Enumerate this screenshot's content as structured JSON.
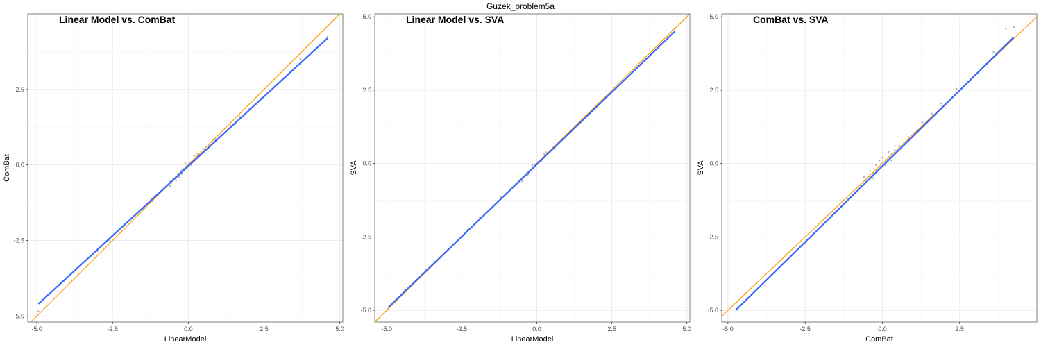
{
  "figure": {
    "suptitle": "Guzek_problem5a"
  },
  "colors": {
    "point": "#a9a9a9",
    "fit_line": "#3366ff",
    "identity_line": "#ff9900",
    "grid_major": "#ebebeb",
    "grid_minor": "#f5f5f5",
    "panel_border": "#7f7f7f"
  },
  "chart_data": [
    {
      "type": "scatter",
      "title": "Linear Model vs. ComBat",
      "xlabel": "LinearModel",
      "ylabel": "ComBat",
      "xlim": [
        -5.3,
        5.1
      ],
      "ylim": [
        -5.2,
        5.0
      ],
      "xticks": [
        -5.0,
        -2.5,
        0.0,
        2.5,
        5.0
      ],
      "xtick_labels": [
        "-5.0",
        "-2.5",
        "0.0",
        "2.5",
        "5.0"
      ],
      "yticks": [
        -5.0,
        -2.5,
        0.0,
        2.5
      ],
      "ytick_labels": [
        "-5.0",
        "-2.5",
        "0.0",
        "2.5"
      ],
      "grid": true,
      "identity_line": {
        "intercept": 0,
        "slope": 1
      },
      "fit_line": {
        "x": [
          -4.95,
          4.6
        ],
        "y": [
          -4.6,
          4.2
        ]
      },
      "points": [
        [
          -4.95,
          -4.85
        ],
        [
          -4.1,
          -3.85
        ],
        [
          -3.7,
          -3.45
        ],
        [
          -3.0,
          -2.85
        ],
        [
          -2.6,
          -2.5
        ],
        [
          -2.2,
          -2.05
        ],
        [
          -1.8,
          -1.7
        ],
        [
          -1.5,
          -1.45
        ],
        [
          -1.2,
          -1.2
        ],
        [
          -1.0,
          -1.0
        ],
        [
          -0.85,
          -0.82
        ],
        [
          -0.7,
          -0.68
        ],
        [
          -0.6,
          -0.55
        ],
        [
          -0.5,
          -0.45
        ],
        [
          -0.42,
          -0.38
        ],
        [
          -0.35,
          -0.3
        ],
        [
          -0.3,
          -0.28
        ],
        [
          -0.25,
          -0.2
        ],
        [
          -0.2,
          -0.16
        ],
        [
          -0.15,
          -0.12
        ],
        [
          -0.1,
          -0.06
        ],
        [
          -0.05,
          -0.03
        ],
        [
          0.0,
          0.02
        ],
        [
          0.05,
          0.06
        ],
        [
          0.1,
          0.1
        ],
        [
          0.15,
          0.14
        ],
        [
          0.2,
          0.18
        ],
        [
          0.25,
          0.22
        ],
        [
          0.3,
          0.26
        ],
        [
          0.38,
          0.34
        ],
        [
          0.45,
          0.4
        ],
        [
          0.55,
          0.5
        ],
        [
          0.7,
          0.63
        ],
        [
          0.9,
          0.82
        ],
        [
          1.1,
          1.0
        ],
        [
          1.4,
          1.3
        ],
        [
          1.7,
          1.6
        ],
        [
          2.0,
          1.85
        ],
        [
          2.4,
          2.2
        ],
        [
          3.7,
          3.5
        ],
        [
          4.6,
          4.25
        ],
        [
          -0.4,
          -0.5
        ],
        [
          -0.2,
          -0.3
        ],
        [
          0.1,
          0.0
        ],
        [
          0.3,
          0.38
        ],
        [
          -0.1,
          0.05
        ],
        [
          0.2,
          0.3
        ],
        [
          -0.3,
          -0.4
        ],
        [
          0.5,
          0.45
        ],
        [
          -0.6,
          -0.7
        ]
      ]
    },
    {
      "type": "scatter",
      "title": "Linear Model vs. SVA",
      "xlabel": "LinearModel",
      "ylabel": "SVA",
      "xlim": [
        -5.4,
        5.1
      ],
      "ylim": [
        -5.4,
        5.1
      ],
      "xticks": [
        -5.0,
        -2.5,
        0.0,
        2.5,
        5.0
      ],
      "xtick_labels": [
        "-5.0",
        "-2.5",
        "0.0",
        "2.5",
        "5.0"
      ],
      "yticks": [
        -5.0,
        -2.5,
        0.0,
        2.5,
        5.0
      ],
      "ytick_labels": [
        "-5.0",
        "-2.5",
        "0.0",
        "2.5",
        "5.0"
      ],
      "grid": true,
      "identity_line": {
        "intercept": 0,
        "slope": 1
      },
      "fit_line": {
        "x": [
          -4.95,
          4.6
        ],
        "y": [
          -4.9,
          4.5
        ]
      },
      "points": [
        [
          -4.95,
          -4.95
        ],
        [
          -4.4,
          -4.3
        ],
        [
          -3.7,
          -3.6
        ],
        [
          -3.4,
          -3.35
        ],
        [
          -2.8,
          -2.75
        ],
        [
          -2.3,
          -2.25
        ],
        [
          -1.9,
          -1.85
        ],
        [
          -1.5,
          -1.5
        ],
        [
          -1.2,
          -1.15
        ],
        [
          -1.0,
          -0.98
        ],
        [
          -0.85,
          -0.85
        ],
        [
          -0.7,
          -0.7
        ],
        [
          -0.55,
          -0.55
        ],
        [
          -0.45,
          -0.44
        ],
        [
          -0.35,
          -0.35
        ],
        [
          -0.28,
          -0.27
        ],
        [
          -0.2,
          -0.2
        ],
        [
          -0.12,
          -0.12
        ],
        [
          -0.05,
          -0.04
        ],
        [
          0.0,
          0.0
        ],
        [
          0.05,
          0.06
        ],
        [
          0.12,
          0.12
        ],
        [
          0.2,
          0.2
        ],
        [
          0.28,
          0.28
        ],
        [
          0.35,
          0.36
        ],
        [
          0.45,
          0.45
        ],
        [
          0.55,
          0.56
        ],
        [
          0.7,
          0.7
        ],
        [
          0.85,
          0.84
        ],
        [
          1.0,
          1.0
        ],
        [
          1.3,
          1.28
        ],
        [
          1.6,
          1.6
        ],
        [
          1.9,
          1.88
        ],
        [
          2.3,
          2.25
        ],
        [
          3.6,
          3.5
        ],
        [
          4.6,
          4.6
        ],
        [
          -0.3,
          -0.38
        ],
        [
          -0.1,
          -0.18
        ],
        [
          0.15,
          0.08
        ],
        [
          0.3,
          0.38
        ],
        [
          -0.5,
          -0.6
        ],
        [
          0.6,
          0.5
        ],
        [
          -0.15,
          -0.05
        ],
        [
          0.25,
          0.33
        ]
      ]
    },
    {
      "type": "scatter",
      "title": "ComBat vs. SVA",
      "xlabel": "ComBat",
      "ylabel": "SVA",
      "xlim": [
        -5.2,
        5.0
      ],
      "ylim": [
        -5.4,
        5.1
      ],
      "xticks": [
        -5.0,
        -2.5,
        0.0,
        2.5
      ],
      "xtick_labels": [
        "-5.0",
        "-2.5",
        "0.0",
        "2.5"
      ],
      "yticks": [
        -5.0,
        -2.5,
        0.0,
        2.5,
        5.0
      ],
      "ytick_labels": [
        "-5.0",
        "-2.5",
        "0.0",
        "2.5",
        "5.0"
      ],
      "grid": true,
      "identity_line": {
        "intercept": 0,
        "slope": 1
      },
      "fit_line": {
        "x": [
          -4.75,
          4.25
        ],
        "y": [
          -5.0,
          4.3
        ]
      },
      "points": [
        [
          -4.7,
          -4.95
        ],
        [
          -3.8,
          -4.15
        ],
        [
          -2.5,
          -2.7
        ],
        [
          -2.0,
          -2.15
        ],
        [
          -1.5,
          -1.6
        ],
        [
          -1.1,
          -1.2
        ],
        [
          -0.85,
          -0.95
        ],
        [
          -0.7,
          -0.75
        ],
        [
          -0.55,
          -0.6
        ],
        [
          -0.4,
          -0.45
        ],
        [
          -0.3,
          -0.32
        ],
        [
          -0.2,
          -0.22
        ],
        [
          -0.1,
          -0.1
        ],
        [
          0.0,
          0.0
        ],
        [
          0.1,
          0.12
        ],
        [
          0.2,
          0.22
        ],
        [
          0.3,
          0.32
        ],
        [
          0.4,
          0.45
        ],
        [
          0.55,
          0.6
        ],
        [
          0.7,
          0.72
        ],
        [
          0.85,
          0.9
        ],
        [
          1.0,
          1.05
        ],
        [
          1.3,
          1.4
        ],
        [
          1.6,
          1.7
        ],
        [
          1.9,
          2.05
        ],
        [
          2.4,
          2.55
        ],
        [
          3.6,
          3.8
        ],
        [
          4.0,
          4.6
        ],
        [
          4.25,
          4.65
        ],
        [
          -0.2,
          -0.05
        ],
        [
          0.0,
          0.2
        ],
        [
          -0.4,
          -0.25
        ],
        [
          0.2,
          0.4
        ],
        [
          -0.1,
          0.1
        ],
        [
          0.1,
          -0.05
        ],
        [
          -0.6,
          -0.45
        ],
        [
          0.4,
          0.6
        ],
        [
          -0.3,
          -0.5
        ],
        [
          0.3,
          0.1
        ]
      ]
    }
  ]
}
